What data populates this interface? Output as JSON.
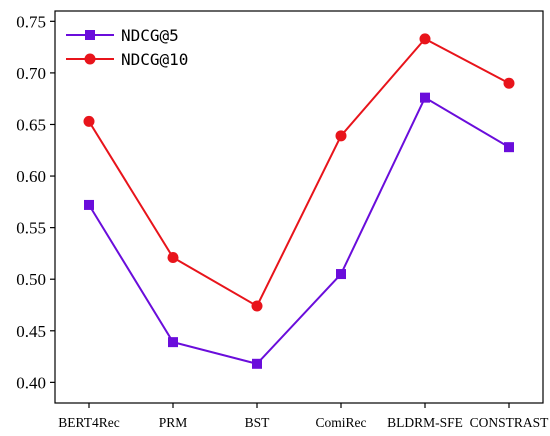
{
  "chart_data": {
    "type": "line",
    "categories": [
      "BERT4Rec",
      "PRM",
      "BST",
      "ComiRec",
      "BLDRM-SFE",
      "CONSTRAST"
    ],
    "series": [
      {
        "name": "NDCG@5",
        "values": [
          0.572,
          0.439,
          0.418,
          0.505,
          0.676,
          0.628
        ],
        "color": "#6a0ddb",
        "marker": "square"
      },
      {
        "name": "NDCG@10",
        "values": [
          0.653,
          0.521,
          0.474,
          0.639,
          0.733,
          0.69
        ],
        "color": "#e8141b",
        "marker": "circle"
      }
    ],
    "title": "",
    "xlabel": "",
    "ylabel": "",
    "ylim": [
      0.38,
      0.76
    ],
    "yticks": [
      "0.40",
      "0.45",
      "0.50",
      "0.55",
      "0.60",
      "0.65",
      "0.70",
      "0.75"
    ],
    "grid": false,
    "legend_position": "top-left"
  }
}
